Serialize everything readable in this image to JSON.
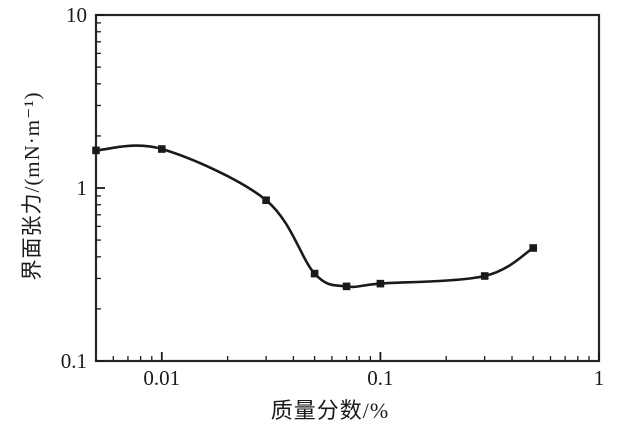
{
  "figure": {
    "background": "#ffffff",
    "frame_color": "#262626",
    "text_color": "#1a1a1a"
  },
  "chart_data": {
    "type": "line",
    "title": "",
    "xlabel": "质量分数/%",
    "ylabel": "界面张力/(mN·m⁻¹)",
    "x_scale": "log",
    "y_scale": "log",
    "xlim": [
      0.005,
      1
    ],
    "ylim": [
      0.1,
      10
    ],
    "x_ticks": [
      {
        "value": 0.01,
        "label": "0.01"
      },
      {
        "value": 0.1,
        "label": "0.1"
      },
      {
        "value": 1,
        "label": "1"
      }
    ],
    "y_ticks": [
      {
        "value": 10,
        "label": "10"
      },
      {
        "value": 1,
        "label": "1"
      },
      {
        "value": 0.1,
        "label": "0.1"
      }
    ],
    "grid": false,
    "legend": "none",
    "series": [
      {
        "name": "界面张力",
        "color": "#1a1a1a",
        "marker": "filled-square",
        "line_style": "smooth",
        "points": [
          {
            "x": 0.005,
            "y": 1.65
          },
          {
            "x": 0.01,
            "y": 1.68
          },
          {
            "x": 0.03,
            "y": 0.85
          },
          {
            "x": 0.05,
            "y": 0.32
          },
          {
            "x": 0.07,
            "y": 0.27
          },
          {
            "x": 0.1,
            "y": 0.28
          },
          {
            "x": 0.3,
            "y": 0.31
          },
          {
            "x": 0.5,
            "y": 0.45
          }
        ]
      }
    ]
  }
}
